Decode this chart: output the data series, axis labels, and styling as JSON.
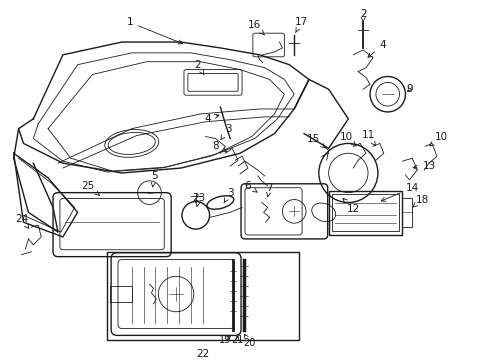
{
  "bg_color": "#ffffff",
  "line_color": "#1a1a1a",
  "figsize": [
    4.89,
    3.6
  ],
  "dpi": 100,
  "label_fontsize": 7.5,
  "label_color": "#1a1a1a"
}
